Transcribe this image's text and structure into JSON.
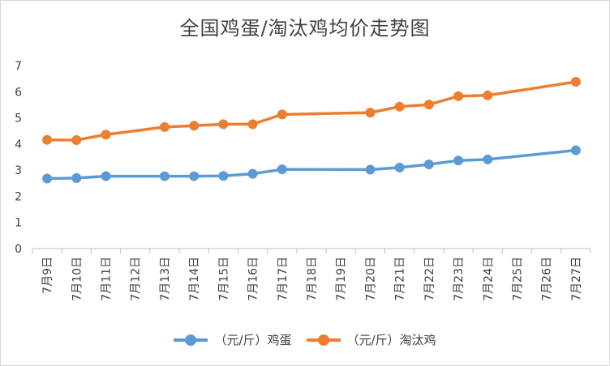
{
  "chart_data": {
    "type": "line",
    "title": "全国鸡蛋/淘汰鸡均价走势图",
    "categories": [
      "7月9日",
      "7月10日",
      "7月11日",
      "7月12日",
      "7月13日",
      "7月14日",
      "7月15日",
      "7月16日",
      "7月17日",
      "7月18日",
      "7月19日",
      "7月20日",
      "7月21日",
      "7月22日",
      "7月23日",
      "7月24日",
      "7月25日",
      "7月26日",
      "7月27日"
    ],
    "ylim": [
      0,
      7
    ],
    "yticks": [
      0,
      1,
      2,
      3,
      4,
      5,
      6,
      7
    ],
    "grid": false,
    "legend_position": "bottom",
    "series": [
      {
        "name": "（元/斤）鸡蛋",
        "color": "#5b9bd5",
        "values": [
          2.68,
          2.7,
          2.77,
          null,
          2.77,
          2.77,
          2.78,
          2.86,
          3.03,
          null,
          null,
          3.02,
          3.1,
          3.22,
          3.37,
          3.41,
          null,
          null,
          3.76
        ]
      },
      {
        "name": "（元/斤）淘汰鸡",
        "color": "#ed7d31",
        "values": [
          4.16,
          4.15,
          4.36,
          null,
          4.65,
          4.7,
          4.76,
          4.76,
          5.13,
          null,
          null,
          5.2,
          5.43,
          5.51,
          5.83,
          5.86,
          null,
          null,
          6.38
        ]
      }
    ]
  }
}
